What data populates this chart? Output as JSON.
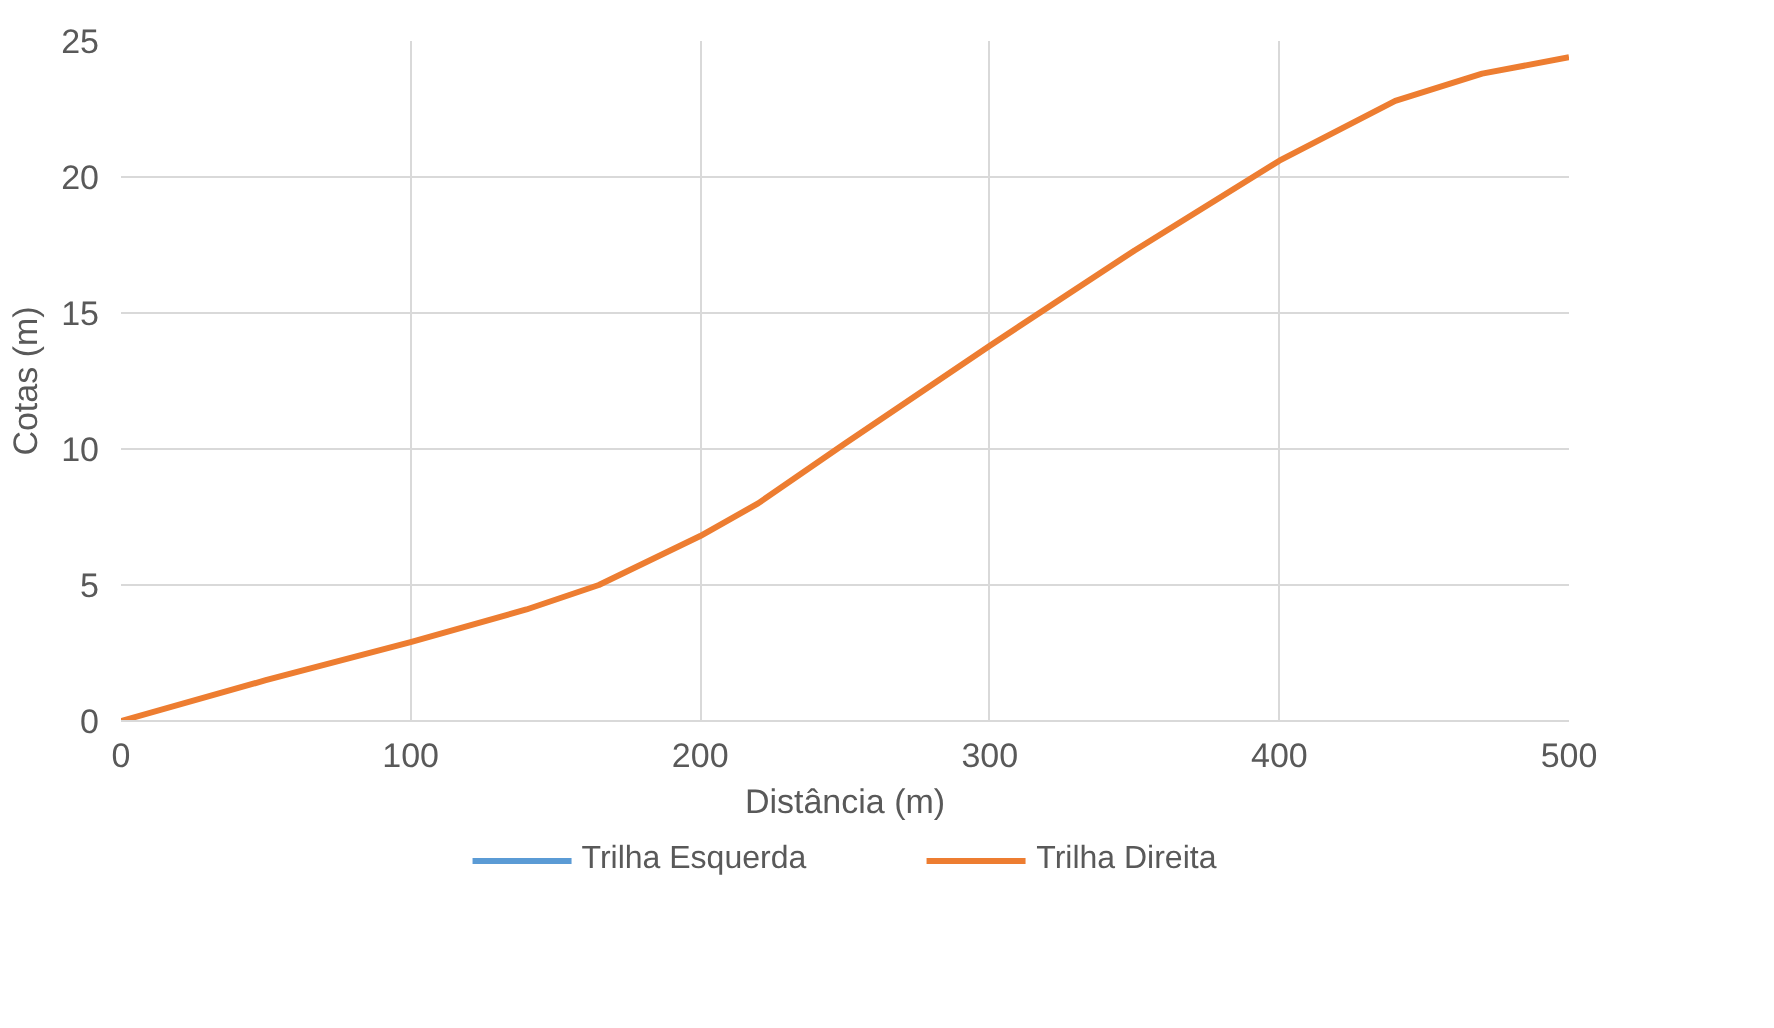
{
  "chart_data": {
    "type": "line",
    "xlabel": "Distância (m)",
    "ylabel": "Cotas (m)",
    "x": [
      0,
      50,
      100,
      140,
      165,
      200,
      220,
      250,
      300,
      350,
      400,
      440,
      470,
      500
    ],
    "series": [
      {
        "name": "Trilha Esquerda",
        "color": "#5b9bd5",
        "values": [
          null,
          null,
          null,
          null,
          null,
          null,
          null,
          null,
          null,
          null,
          null,
          null,
          null,
          null
        ]
      },
      {
        "name": "Trilha Direita",
        "color": "#ed7d31",
        "values": [
          0,
          1.5,
          2.9,
          4.1,
          5,
          6.8,
          8,
          10.2,
          13.8,
          17.3,
          20.6,
          22.8,
          23.8,
          24.4
        ]
      }
    ],
    "xlim": [
      0,
      500
    ],
    "xticks": [
      0,
      100,
      200,
      300,
      400,
      500
    ],
    "ylim": [
      0,
      25
    ],
    "yticks": [
      0,
      5,
      10,
      15,
      20,
      25
    ],
    "grid": true,
    "legend": "bottom",
    "marker": "none",
    "line_style": "solid"
  }
}
